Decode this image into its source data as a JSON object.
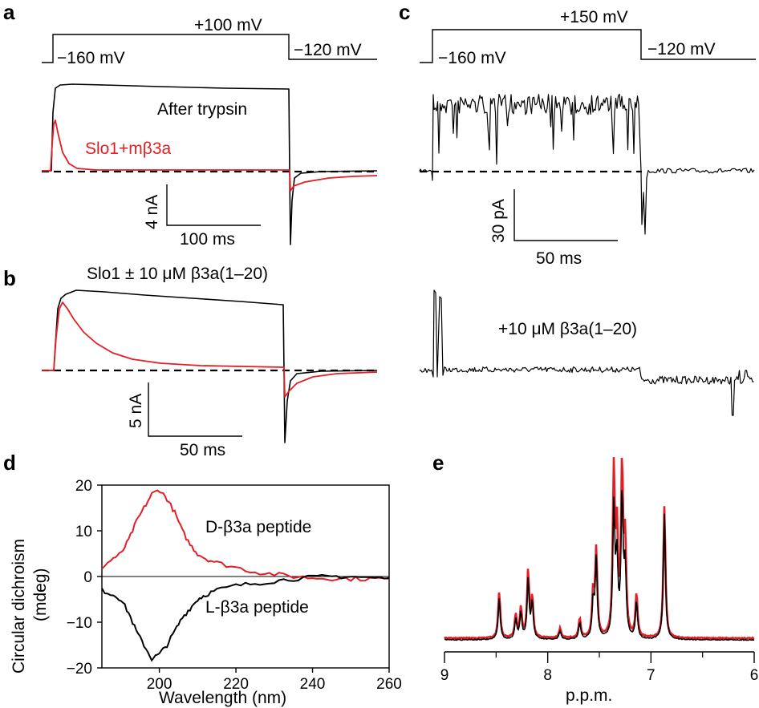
{
  "panels": {
    "a": {
      "label": "a",
      "v_hold": "−160 mV",
      "v_step": "+100 mV",
      "v_tail": "−120 mV",
      "trace_black_label": "After trypsin",
      "trace_red_label": "Slo1+mβ3a",
      "scale_y": "4 nA",
      "scale_x": "100 ms"
    },
    "b": {
      "label": "b",
      "title": "Slo1 ± 10 μM β3a(1–20)",
      "scale_y": "5 nA",
      "scale_x": "50 ms"
    },
    "c": {
      "label": "c",
      "v_hold": "−160 mV",
      "v_step": "+150 mV",
      "v_tail": "−120 mV",
      "scale_y": "30 pA",
      "scale_x": "50 ms",
      "lower_label": "+10 μM β3a(1–20)"
    },
    "d": {
      "label": "d",
      "ylabel_line1": "Circular dichroism",
      "ylabel_line2": "(mdeg)",
      "xlabel": "Wavelength (nm)",
      "red_label": "D-β3a peptide",
      "black_label": "L-β3a peptide"
    },
    "e": {
      "label": "e",
      "xlabel": "p.p.m."
    }
  },
  "colors": {
    "red": "#e31e24",
    "black": "#000000"
  },
  "chart_data": [
    {
      "panel": "d",
      "type": "line",
      "xlabel": "Wavelength (nm)",
      "ylabel": "Circular dichroism (mdeg)",
      "xlim": [
        185,
        260
      ],
      "ylim": [
        -20,
        20
      ],
      "x_ticks": [
        200,
        220,
        240,
        260
      ],
      "y_ticks": [
        20,
        10,
        0,
        -10,
        -20
      ],
      "series": [
        {
          "name": "D-β3a peptide",
          "color": "#e31e24",
          "x": [
            185,
            188,
            190,
            192,
            194,
            196,
            198,
            200,
            202,
            204,
            206,
            208,
            210,
            212,
            215,
            220,
            225,
            230,
            235,
            240,
            245,
            250,
            255,
            260
          ],
          "y": [
            2,
            4,
            5,
            8,
            12,
            15,
            18,
            19,
            17,
            14,
            10,
            7,
            5,
            4,
            3,
            2,
            1,
            0.5,
            0,
            -0.3,
            -0.4,
            -0.5,
            -0.5,
            -0.5
          ]
        },
        {
          "name": "L-β3a peptide",
          "color": "#000000",
          "x": [
            185,
            188,
            190,
            192,
            194,
            196,
            198,
            200,
            202,
            204,
            206,
            208,
            210,
            212,
            215,
            220,
            225,
            230,
            235,
            240,
            245,
            250,
            255,
            260
          ],
          "y": [
            -3,
            -4,
            -5,
            -8,
            -12,
            -15,
            -18,
            -17,
            -15,
            -12,
            -9,
            -7,
            -5,
            -4,
            -3,
            -2,
            -1.5,
            -1,
            -0.5,
            -0.2,
            0,
            0,
            -0.3,
            -0.3
          ]
        }
      ]
    },
    {
      "panel": "e",
      "type": "line",
      "xlabel": "p.p.m.",
      "xlim": [
        9,
        6
      ],
      "x_ticks": [
        9,
        8,
        7,
        6
      ],
      "peaks": [
        {
          "ppm": 8.47,
          "red": 0.28,
          "black": 0.25
        },
        {
          "ppm": 8.31,
          "red": 0.14,
          "black": 0.12
        },
        {
          "ppm": 8.26,
          "red": 0.18,
          "black": 0.16
        },
        {
          "ppm": 8.19,
          "red": 0.4,
          "black": 0.36
        },
        {
          "ppm": 8.15,
          "red": 0.24,
          "black": 0.22
        },
        {
          "ppm": 7.88,
          "red": 0.06,
          "black": 0.05
        },
        {
          "ppm": 7.69,
          "red": 0.12,
          "black": 0.1
        },
        {
          "ppm": 7.56,
          "red": 0.26,
          "black": 0.22
        },
        {
          "ppm": 7.53,
          "red": 0.52,
          "black": 0.48
        },
        {
          "ppm": 7.36,
          "red": 0.98,
          "black": 0.78
        },
        {
          "ppm": 7.33,
          "red": 0.6,
          "black": 0.45
        },
        {
          "ppm": 7.28,
          "red": 1.0,
          "black": 0.84
        },
        {
          "ppm": 7.25,
          "red": 0.55,
          "black": 0.4
        },
        {
          "ppm": 7.14,
          "red": 0.26,
          "black": 0.22
        },
        {
          "ppm": 6.87,
          "red": 0.8,
          "black": 0.76
        }
      ]
    }
  ]
}
